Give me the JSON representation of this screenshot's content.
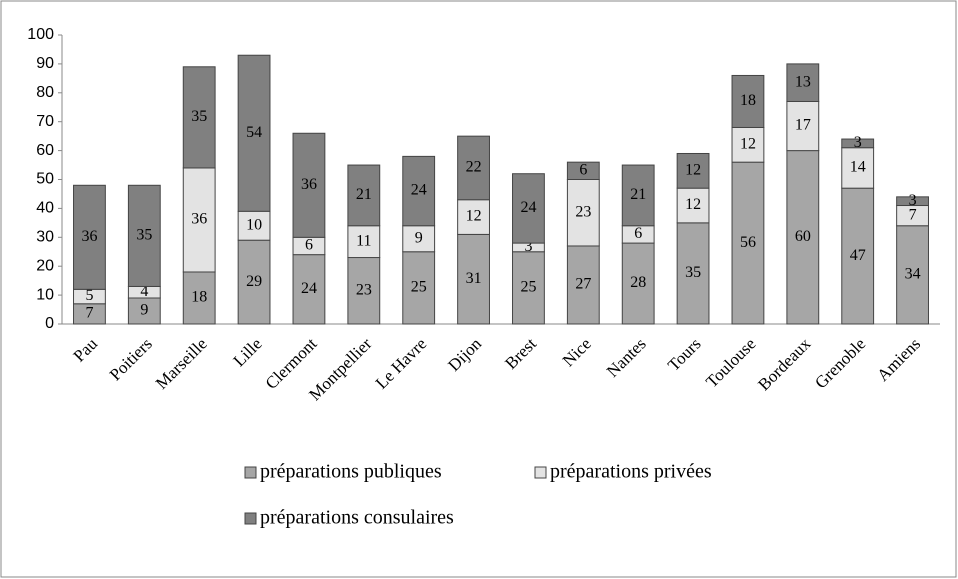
{
  "chart_data": {
    "type": "bar",
    "stacked": true,
    "categories": [
      "Pau",
      "Poitiers",
      "Marseille",
      "Lille",
      "Clermont",
      "Montpellier",
      "Le Havre",
      "Dijon",
      "Brest",
      "Nice",
      "Nantes",
      "Tours",
      "Toulouse",
      "Bordeaux",
      "Grenoble",
      "Amiens"
    ],
    "series": [
      {
        "name": "préparations publiques",
        "color": "#a6a6a6",
        "values": [
          7,
          9,
          18,
          29,
          24,
          23,
          25,
          31,
          25,
          27,
          28,
          35,
          56,
          60,
          47,
          34
        ]
      },
      {
        "name": "préparations privées",
        "color": "#e3e3e3",
        "values": [
          5,
          4,
          36,
          10,
          6,
          11,
          9,
          12,
          3,
          23,
          6,
          12,
          12,
          17,
          14,
          7
        ]
      },
      {
        "name": "préparations consulaires",
        "color": "#808080",
        "values": [
          36,
          35,
          35,
          54,
          36,
          21,
          24,
          22,
          24,
          6,
          21,
          12,
          18,
          13,
          3,
          3
        ]
      }
    ],
    "ylim": [
      0,
      100
    ],
    "yticks": [
      0,
      10,
      20,
      30,
      40,
      50,
      60,
      70,
      80,
      90,
      100
    ],
    "grid": false,
    "legend": "bottom"
  }
}
